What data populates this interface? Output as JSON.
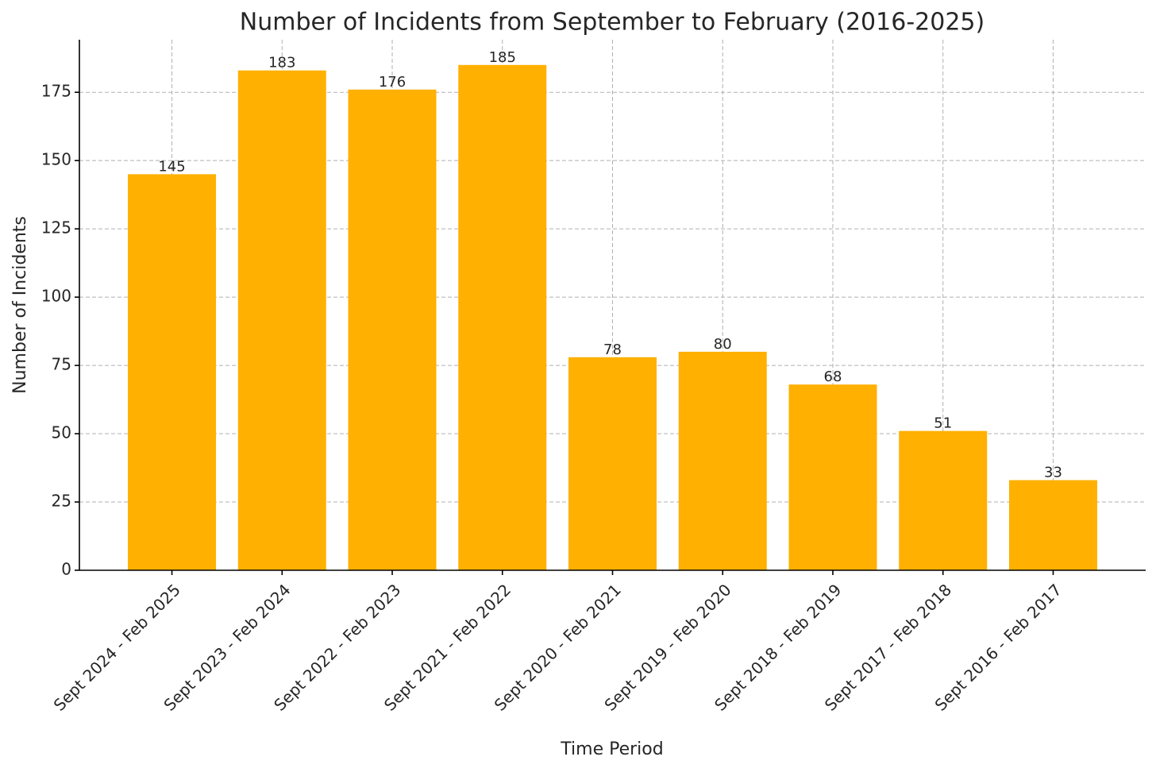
{
  "chart_data": {
    "type": "bar",
    "title": "Number of Incidents from September to February (2016-2025)",
    "x_label": "Time Period",
    "y_label": "Number of Incidents",
    "categories": [
      "Sept 2024 - Feb 2025",
      "Sept 2023 - Feb 2024",
      "Sept 2022 - Feb 2023",
      "Sept 2021 - Feb 2022",
      "Sept 2020 - Feb 2021",
      "Sept 2019 - Feb 2020",
      "Sept 2018 - Feb 2019",
      "Sept 2017 - Feb 2018",
      "Sept 2016 - Feb 2017"
    ],
    "values": [
      145,
      183,
      176,
      185,
      78,
      80,
      68,
      51,
      33
    ],
    "color": "#ffb000",
    "ylim": [
      0,
      194.25
    ],
    "yticks": [
      0,
      25,
      50,
      75,
      100,
      125,
      150,
      175
    ],
    "grid": true
  }
}
